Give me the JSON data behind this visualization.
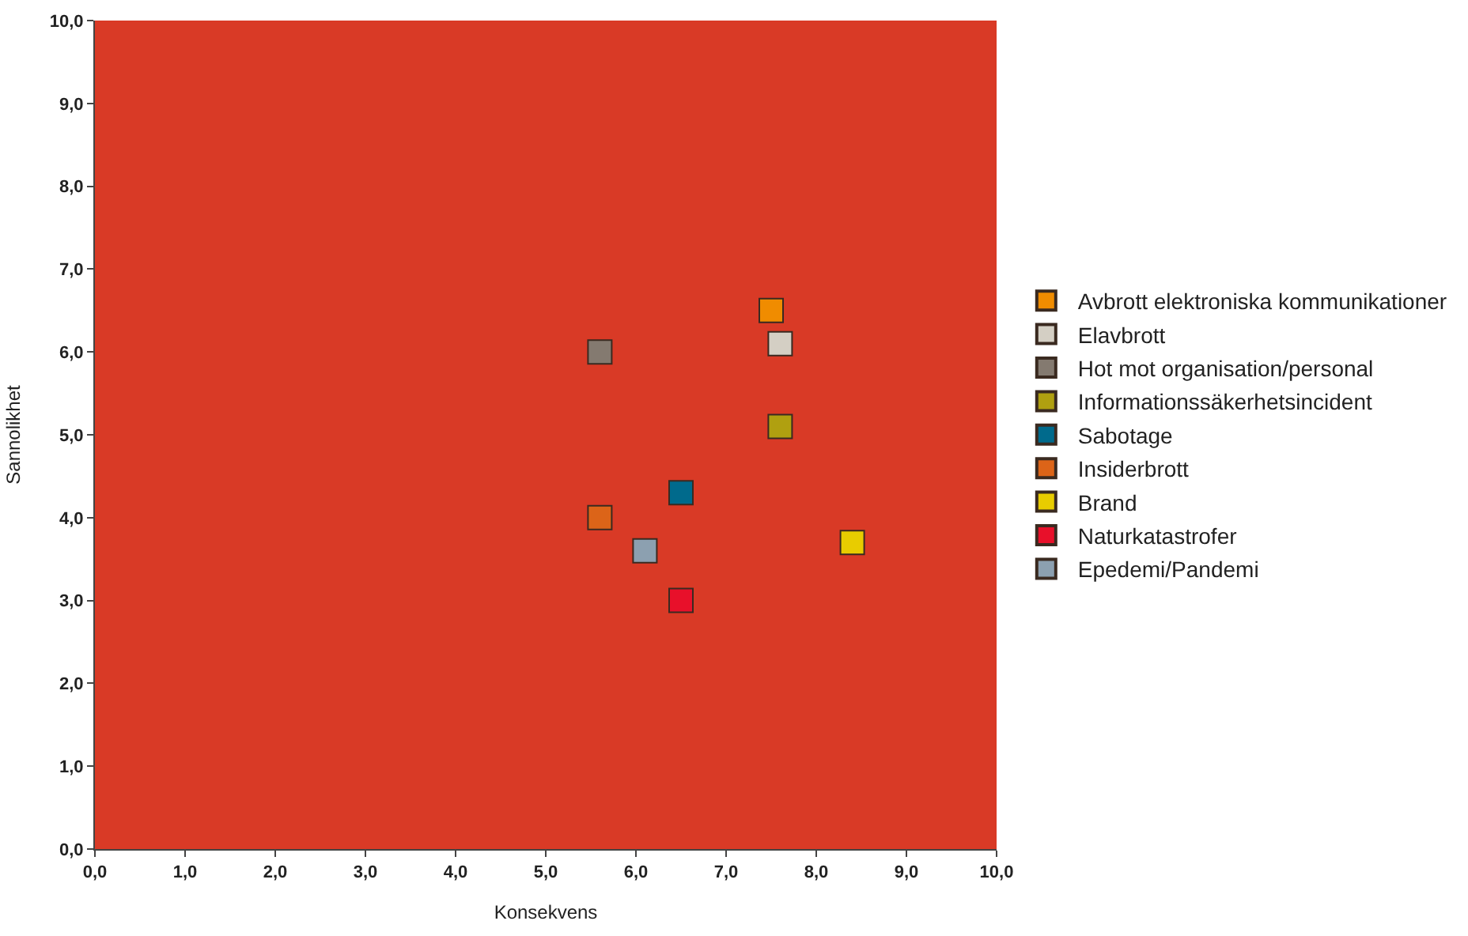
{
  "chart_data": {
    "type": "scatter",
    "xlabel": "Konsekvens",
    "ylabel": "Sannolikhet",
    "xlim": [
      0,
      10
    ],
    "ylim": [
      0,
      10
    ],
    "xticks": [
      {
        "value": 0,
        "label": "0,0"
      },
      {
        "value": 1,
        "label": "1,0"
      },
      {
        "value": 2,
        "label": "2,0"
      },
      {
        "value": 3,
        "label": "3,0"
      },
      {
        "value": 4,
        "label": "4,0"
      },
      {
        "value": 5,
        "label": "5,0"
      },
      {
        "value": 6,
        "label": "6,0"
      },
      {
        "value": 7,
        "label": "7,0"
      },
      {
        "value": 8,
        "label": "8,0"
      },
      {
        "value": 9,
        "label": "9,0"
      },
      {
        "value": 10,
        "label": "10,0"
      }
    ],
    "yticks": [
      {
        "value": 0,
        "label": "0,0"
      },
      {
        "value": 1,
        "label": "1,0"
      },
      {
        "value": 2,
        "label": "2,0"
      },
      {
        "value": 3,
        "label": "3,0"
      },
      {
        "value": 4,
        "label": "4,0"
      },
      {
        "value": 5,
        "label": "5,0"
      },
      {
        "value": 6,
        "label": "6,0"
      },
      {
        "value": 7,
        "label": "7,0"
      },
      {
        "value": 8,
        "label": "8,0"
      },
      {
        "value": 9,
        "label": "9,0"
      },
      {
        "value": 10,
        "label": "10,0"
      }
    ],
    "grid": false,
    "legend": "right",
    "marker": "square",
    "series": [
      {
        "name": "Avbrott elektroniska kommunikationer",
        "color": "#f08c00",
        "x": [
          7.5
        ],
        "values": [
          6.5
        ]
      },
      {
        "name": "Elavbrott",
        "color": "#d4cfc4",
        "x": [
          7.6
        ],
        "values": [
          6.1
        ]
      },
      {
        "name": "Hot mot organisation/personal",
        "color": "#847a70",
        "x": [
          5.6
        ],
        "values": [
          6.0
        ]
      },
      {
        "name": "Informationssäkerhetsincident",
        "color": "#b0a010",
        "x": [
          7.6
        ],
        "values": [
          5.1
        ]
      },
      {
        "name": "Sabotage",
        "color": "#006a8c",
        "x": [
          6.5
        ],
        "values": [
          4.3
        ]
      },
      {
        "name": "Insiderbrott",
        "color": "#dc6418",
        "x": [
          5.6
        ],
        "values": [
          4.0
        ]
      },
      {
        "name": "Brand",
        "color": "#e8cc00",
        "x": [
          8.4
        ],
        "values": [
          3.7
        ]
      },
      {
        "name": "Naturkatastrofer",
        "color": "#e8102a",
        "x": [
          6.5
        ],
        "values": [
          3.0
        ]
      },
      {
        "name": "Epedemi/Pandemi",
        "color": "#8ca0b0",
        "x": [
          6.1
        ],
        "values": [
          3.6
        ]
      }
    ]
  }
}
